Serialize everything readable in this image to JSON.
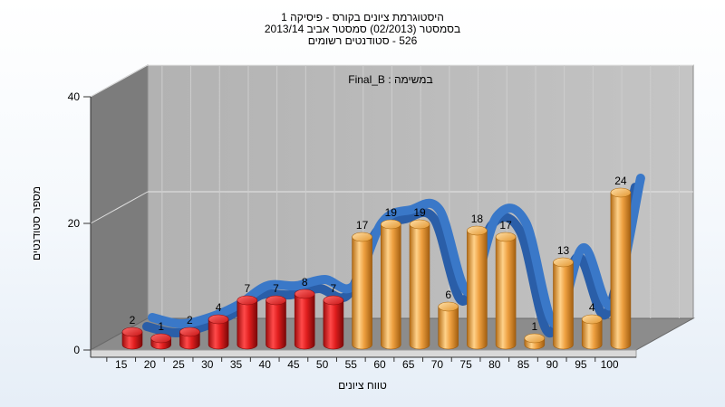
{
  "chart_data": {
    "type": "bar",
    "title": "היסטוגרמת ציונים בקורס - פיסיקה 1",
    "subtitle_1": "בסמסטר  (02/2013)  סמסטר אביב 2013/14",
    "subtitle_2": "526 - סטודנטים רשומים",
    "series_label": "במשימה : Final_B",
    "xlabel": "טווח ציונים",
    "ylabel": "מספר סטודנטים",
    "categories": [
      "15",
      "20",
      "25",
      "30",
      "35",
      "40",
      "45",
      "50",
      "55",
      "60",
      "65",
      "70",
      "75",
      "80",
      "85",
      "90",
      "95",
      "100"
    ],
    "values": [
      2,
      1,
      2,
      4,
      7,
      7,
      8,
      7,
      17,
      19,
      19,
      6,
      18,
      17,
      1,
      13,
      4,
      24
    ],
    "bar_colors": [
      "red",
      "red",
      "red",
      "red",
      "red",
      "red",
      "red",
      "red",
      "orange",
      "orange",
      "orange",
      "orange",
      "orange",
      "orange",
      "orange",
      "orange",
      "orange",
      "orange"
    ],
    "ylim": [
      0,
      40
    ],
    "yticks": [
      "0",
      "20",
      "40"
    ],
    "trend_line": true,
    "grid": true,
    "colors": {
      "red": "#e8282a",
      "orange": "#f0a43c",
      "trend": "#3a78c8",
      "back_wall": "#b8b8b8",
      "side_wall": "#7d7d7d",
      "floor": "#8a8a8a"
    }
  }
}
